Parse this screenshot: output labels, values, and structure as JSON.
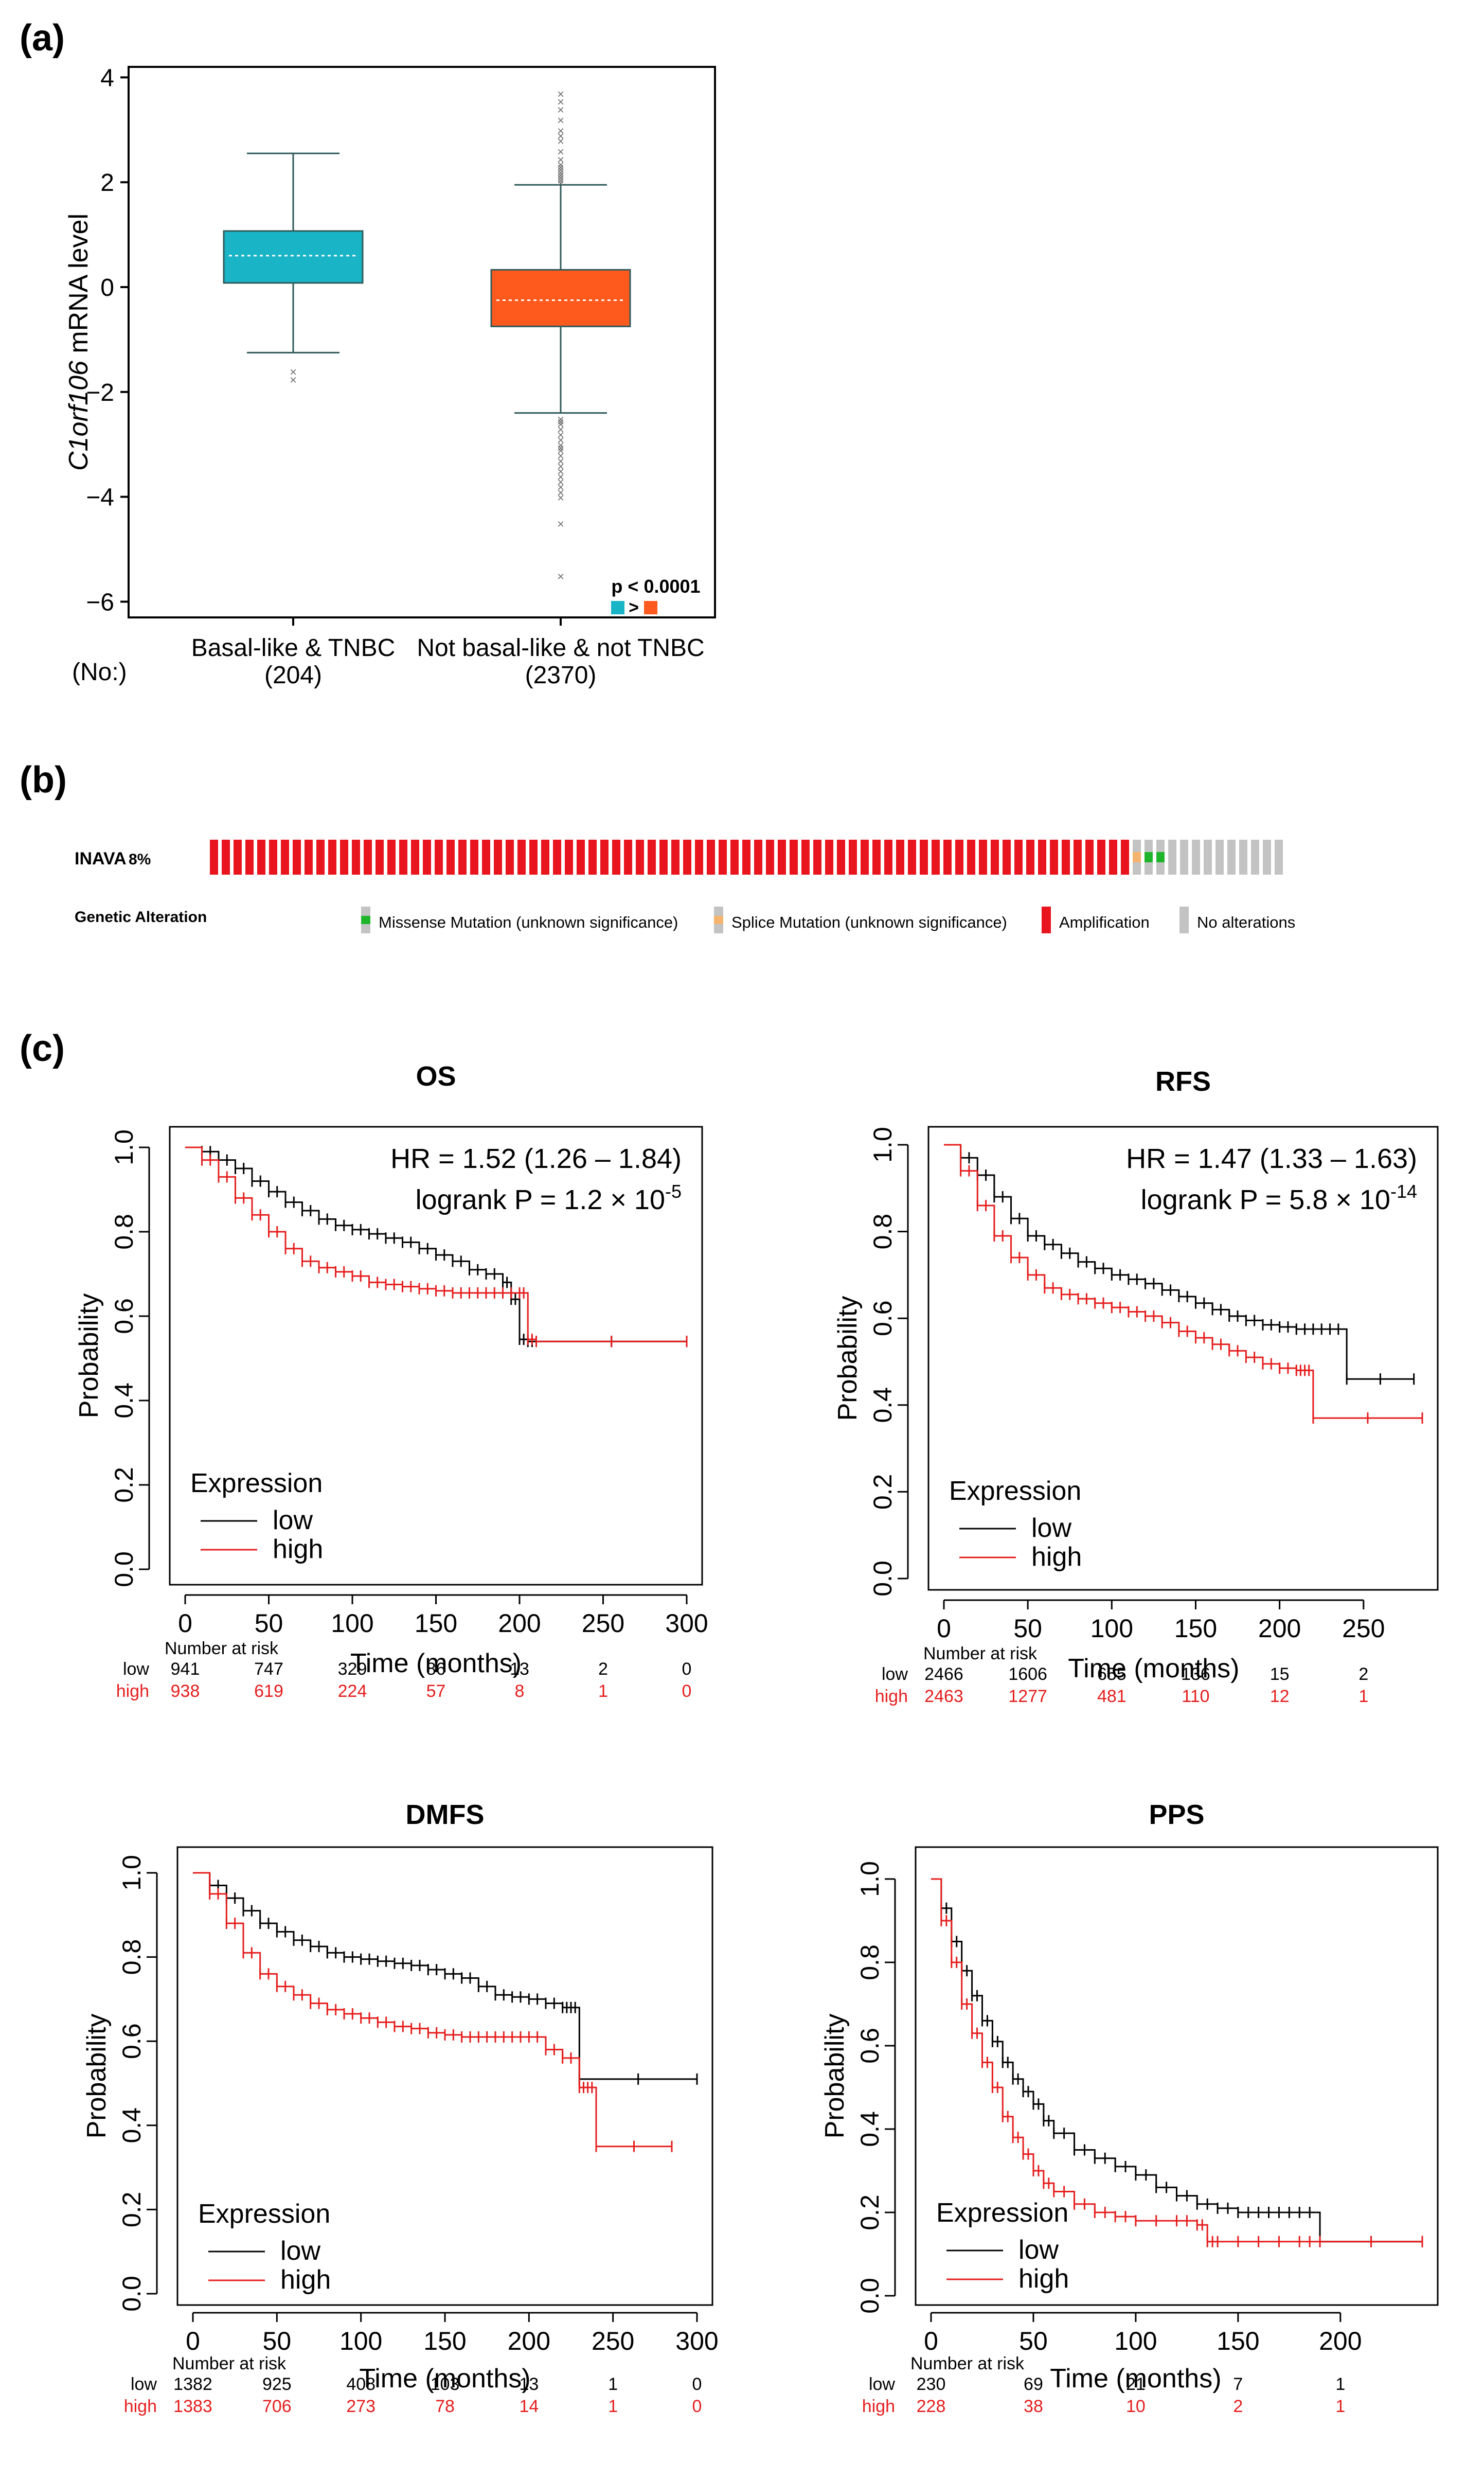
{
  "panel_labels": {
    "a": "(a)",
    "b": "(b)",
    "c": "(c)"
  },
  "colors": {
    "basal": "#19B4C6",
    "not_basal": "#FF5A1E",
    "low": "#000000",
    "high": "#E51E1E",
    "amp": "#E8141E",
    "missense": "#1FB52A",
    "splice": "#F5B46E",
    "none": "#C3C3C3"
  },
  "chart_data": [
    {
      "type": "box",
      "ylabel": "C1orf106 mRNA level",
      "ylabel_italic_part": "C1orf106",
      "ylabel_rest": " mRNA level",
      "ylim": [
        -6.3,
        4.2
      ],
      "yticks": [
        4,
        2,
        0,
        -2,
        -4,
        -6
      ],
      "ytick_labels": [
        "4",
        "2",
        "0",
        "−2",
        "−4",
        "−6"
      ],
      "no_label": "(No:)",
      "groups": [
        {
          "name": "Basal-like & TNBC",
          "n_label": "(204)",
          "q1": 0.08,
          "median": 0.6,
          "q3": 1.07,
          "whisker_low": -1.25,
          "whisker_high": 2.55,
          "outliers": [
            -1.6,
            -1.75
          ]
        },
        {
          "name": "Not basal-like & not TNBC",
          "n_label": "(2370)",
          "q1": -0.75,
          "median": -0.25,
          "q3": 0.33,
          "whisker_low": -2.4,
          "whisker_high": 1.95,
          "outliers": [
            3.7,
            3.55,
            3.4,
            3.2,
            3.0,
            2.9,
            2.8,
            2.6,
            2.45,
            2.35,
            2.3,
            2.25,
            2.2,
            2.15,
            2.1,
            2.05,
            2.0,
            -2.5,
            -2.55,
            -2.6,
            -2.7,
            -2.8,
            -2.9,
            -3.0,
            -3.05,
            -3.1,
            -3.2,
            -3.3,
            -3.4,
            -3.5,
            -3.6,
            -3.7,
            -3.8,
            -3.9,
            -4.0,
            -4.5,
            -5.5
          ]
        }
      ],
      "pvalue": "p < 0.0001",
      "comparison_symbol": ">"
    },
    {
      "type": "oncoprint",
      "gene": "INAVA",
      "percent": "8%",
      "amplification_count": 78,
      "splice_count": 1,
      "missense_count": 2,
      "no_alteration_count": 10,
      "legend_title": "Genetic Alteration",
      "legend": [
        "Missense Mutation (unknown significance)",
        "Splice Mutation (unknown significance)",
        "Amplification",
        "No alterations"
      ]
    },
    {
      "type": "line",
      "title": "OS",
      "xlabel": "Time (months)",
      "ylabel": "Probability",
      "xlim": [
        0,
        300
      ],
      "xticks": [
        0,
        50,
        100,
        150,
        200,
        250,
        300
      ],
      "ylim": [
        0,
        1
      ],
      "yticks": [
        "0.0",
        "0.2",
        "0.4",
        "0.6",
        "0.8",
        "1.0"
      ],
      "hr": "HR = 1.52 (1.26 – 1.84)",
      "logrank_prefix": "logrank P = 1.2 × 10",
      "logrank_exp": "-5",
      "legend_title": "Expression",
      "legend": [
        "low",
        "high"
      ],
      "series": [
        {
          "name": "low",
          "x": [
            0,
            10,
            20,
            30,
            40,
            50,
            60,
            70,
            80,
            90,
            100,
            110,
            120,
            130,
            140,
            150,
            160,
            170,
            180,
            190,
            195,
            200,
            205,
            210,
            300
          ],
          "y": [
            1.0,
            0.99,
            0.97,
            0.95,
            0.92,
            0.895,
            0.87,
            0.85,
            0.83,
            0.815,
            0.805,
            0.795,
            0.785,
            0.775,
            0.76,
            0.745,
            0.73,
            0.71,
            0.7,
            0.68,
            0.64,
            0.545,
            0.54,
            0.54,
            0.54
          ]
        },
        {
          "name": "high",
          "x": [
            0,
            10,
            20,
            30,
            40,
            50,
            60,
            70,
            80,
            90,
            100,
            110,
            120,
            130,
            140,
            150,
            160,
            170,
            180,
            190,
            200,
            205,
            210,
            300
          ],
          "y": [
            1.0,
            0.97,
            0.93,
            0.88,
            0.84,
            0.8,
            0.76,
            0.73,
            0.715,
            0.705,
            0.695,
            0.68,
            0.675,
            0.67,
            0.665,
            0.66,
            0.655,
            0.655,
            0.655,
            0.655,
            0.655,
            0.545,
            0.54,
            0.54
          ]
        }
      ],
      "risk_title": "Number at risk",
      "risk_x": [
        0,
        50,
        100,
        150,
        200,
        250,
        300
      ],
      "risk_low": [
        "941",
        "747",
        "329",
        "86",
        "13",
        "2",
        "0"
      ],
      "risk_high": [
        "938",
        "619",
        "224",
        "57",
        "8",
        "1",
        "0"
      ],
      "risk_labels": [
        "low",
        "high"
      ]
    },
    {
      "type": "line",
      "title": "RFS",
      "xlabel": "Time (months)",
      "ylabel": "Probability",
      "xlim": [
        0,
        285
      ],
      "xticks": [
        0,
        50,
        100,
        150,
        200,
        250
      ],
      "ylim": [
        0,
        1
      ],
      "yticks": [
        "0.0",
        "0.2",
        "0.4",
        "0.6",
        "0.8",
        "1.0"
      ],
      "hr": "HR = 1.47 (1.33 – 1.63)",
      "logrank_prefix": "logrank P = 5.8 × 10",
      "logrank_exp": "-14",
      "legend_title": "Expression",
      "legend": [
        "low",
        "high"
      ],
      "series": [
        {
          "name": "low",
          "x": [
            0,
            10,
            20,
            30,
            40,
            50,
            60,
            70,
            80,
            90,
            100,
            110,
            120,
            130,
            140,
            150,
            160,
            170,
            180,
            190,
            200,
            210,
            220,
            230,
            240,
            280
          ],
          "y": [
            1.0,
            0.97,
            0.93,
            0.88,
            0.83,
            0.79,
            0.77,
            0.75,
            0.73,
            0.715,
            0.7,
            0.69,
            0.68,
            0.665,
            0.65,
            0.635,
            0.62,
            0.605,
            0.595,
            0.585,
            0.58,
            0.575,
            0.575,
            0.575,
            0.46,
            0.46
          ]
        },
        {
          "name": "high",
          "x": [
            0,
            10,
            20,
            30,
            40,
            50,
            60,
            70,
            80,
            90,
            100,
            110,
            120,
            130,
            140,
            150,
            160,
            170,
            180,
            190,
            200,
            210,
            215,
            220,
            285
          ],
          "y": [
            1.0,
            0.94,
            0.86,
            0.79,
            0.74,
            0.7,
            0.67,
            0.655,
            0.645,
            0.635,
            0.625,
            0.615,
            0.605,
            0.59,
            0.57,
            0.555,
            0.54,
            0.525,
            0.51,
            0.495,
            0.485,
            0.48,
            0.48,
            0.37,
            0.37
          ]
        }
      ],
      "risk_title": "Number at risk",
      "risk_x": [
        0,
        50,
        100,
        150,
        200,
        250
      ],
      "risk_low": [
        "2466",
        "1606",
        "655",
        "136",
        "15",
        "2"
      ],
      "risk_high": [
        "2463",
        "1277",
        "481",
        "110",
        "12",
        "1"
      ],
      "risk_labels": [
        "low",
        "high"
      ]
    },
    {
      "type": "line",
      "title": "DMFS",
      "xlabel": "Time (months)",
      "ylabel": "Probability",
      "xlim": [
        0,
        300
      ],
      "xticks": [
        0,
        50,
        100,
        150,
        200,
        250,
        300
      ],
      "ylim": [
        0,
        1
      ],
      "yticks": [
        "0.0",
        "0.2",
        "0.4",
        "0.6",
        "0.8",
        "1.0"
      ],
      "legend_title": "Expression",
      "legend": [
        "low",
        "high"
      ],
      "series": [
        {
          "name": "low",
          "x": [
            0,
            10,
            20,
            30,
            40,
            50,
            60,
            70,
            80,
            90,
            100,
            110,
            120,
            130,
            140,
            150,
            160,
            170,
            180,
            190,
            200,
            210,
            220,
            225,
            230,
            300
          ],
          "y": [
            1.0,
            0.97,
            0.94,
            0.91,
            0.88,
            0.86,
            0.84,
            0.825,
            0.81,
            0.8,
            0.795,
            0.79,
            0.785,
            0.78,
            0.77,
            0.76,
            0.75,
            0.73,
            0.71,
            0.705,
            0.7,
            0.69,
            0.68,
            0.68,
            0.51,
            0.51
          ]
        },
        {
          "name": "high",
          "x": [
            0,
            10,
            20,
            30,
            40,
            50,
            60,
            70,
            80,
            90,
            100,
            110,
            120,
            130,
            140,
            150,
            160,
            170,
            180,
            190,
            200,
            210,
            220,
            230,
            235,
            240,
            285
          ],
          "y": [
            1.0,
            0.95,
            0.88,
            0.81,
            0.76,
            0.73,
            0.71,
            0.69,
            0.675,
            0.665,
            0.655,
            0.645,
            0.635,
            0.63,
            0.62,
            0.615,
            0.61,
            0.61,
            0.61,
            0.61,
            0.61,
            0.58,
            0.56,
            0.49,
            0.49,
            0.35,
            0.35
          ]
        }
      ],
      "risk_title": "Number at risk",
      "risk_x": [
        0,
        50,
        100,
        150,
        200,
        250,
        300
      ],
      "risk_low": [
        "1382",
        "925",
        "408",
        "103",
        "13",
        "1",
        "0"
      ],
      "risk_high": [
        "1383",
        "706",
        "273",
        "78",
        "14",
        "1",
        "0"
      ],
      "risk_labels": [
        "low",
        "high"
      ]
    },
    {
      "type": "line",
      "title": "PPS",
      "xlabel": "Time (months)",
      "ylabel": "Probability",
      "xlim": [
        0,
        240
      ],
      "xticks": [
        0,
        50,
        100,
        150,
        200
      ],
      "ylim": [
        0,
        1
      ],
      "yticks": [
        "0.0",
        "0.2",
        "0.4",
        "0.6",
        "0.8",
        "1.0"
      ],
      "legend_title": "Expression",
      "legend": [
        "low",
        "high"
      ],
      "series": [
        {
          "name": "low",
          "x": [
            0,
            5,
            10,
            15,
            20,
            25,
            30,
            35,
            40,
            45,
            50,
            55,
            60,
            70,
            80,
            90,
            100,
            110,
            120,
            130,
            140,
            150,
            160,
            170,
            180,
            190,
            240
          ],
          "y": [
            1.0,
            0.93,
            0.85,
            0.78,
            0.72,
            0.66,
            0.61,
            0.56,
            0.52,
            0.49,
            0.46,
            0.42,
            0.39,
            0.35,
            0.33,
            0.31,
            0.29,
            0.26,
            0.24,
            0.22,
            0.21,
            0.2,
            0.2,
            0.2,
            0.2,
            0.13,
            0.13
          ]
        },
        {
          "name": "high",
          "x": [
            0,
            5,
            10,
            15,
            20,
            25,
            30,
            35,
            40,
            45,
            50,
            55,
            60,
            70,
            80,
            90,
            100,
            120,
            130,
            135,
            140,
            160,
            180,
            190,
            240
          ],
          "y": [
            1.0,
            0.9,
            0.8,
            0.7,
            0.63,
            0.56,
            0.5,
            0.43,
            0.38,
            0.34,
            0.3,
            0.27,
            0.25,
            0.22,
            0.2,
            0.19,
            0.18,
            0.18,
            0.17,
            0.13,
            0.13,
            0.13,
            0.13,
            0.13,
            0.13
          ]
        }
      ],
      "risk_title": "Number at risk",
      "risk_x": [
        0,
        50,
        100,
        150,
        200
      ],
      "risk_low": [
        "230",
        "69",
        "21",
        "7",
        "1"
      ],
      "risk_high": [
        "228",
        "38",
        "10",
        "2",
        "1"
      ],
      "risk_labels": [
        "low",
        "high"
      ]
    }
  ]
}
